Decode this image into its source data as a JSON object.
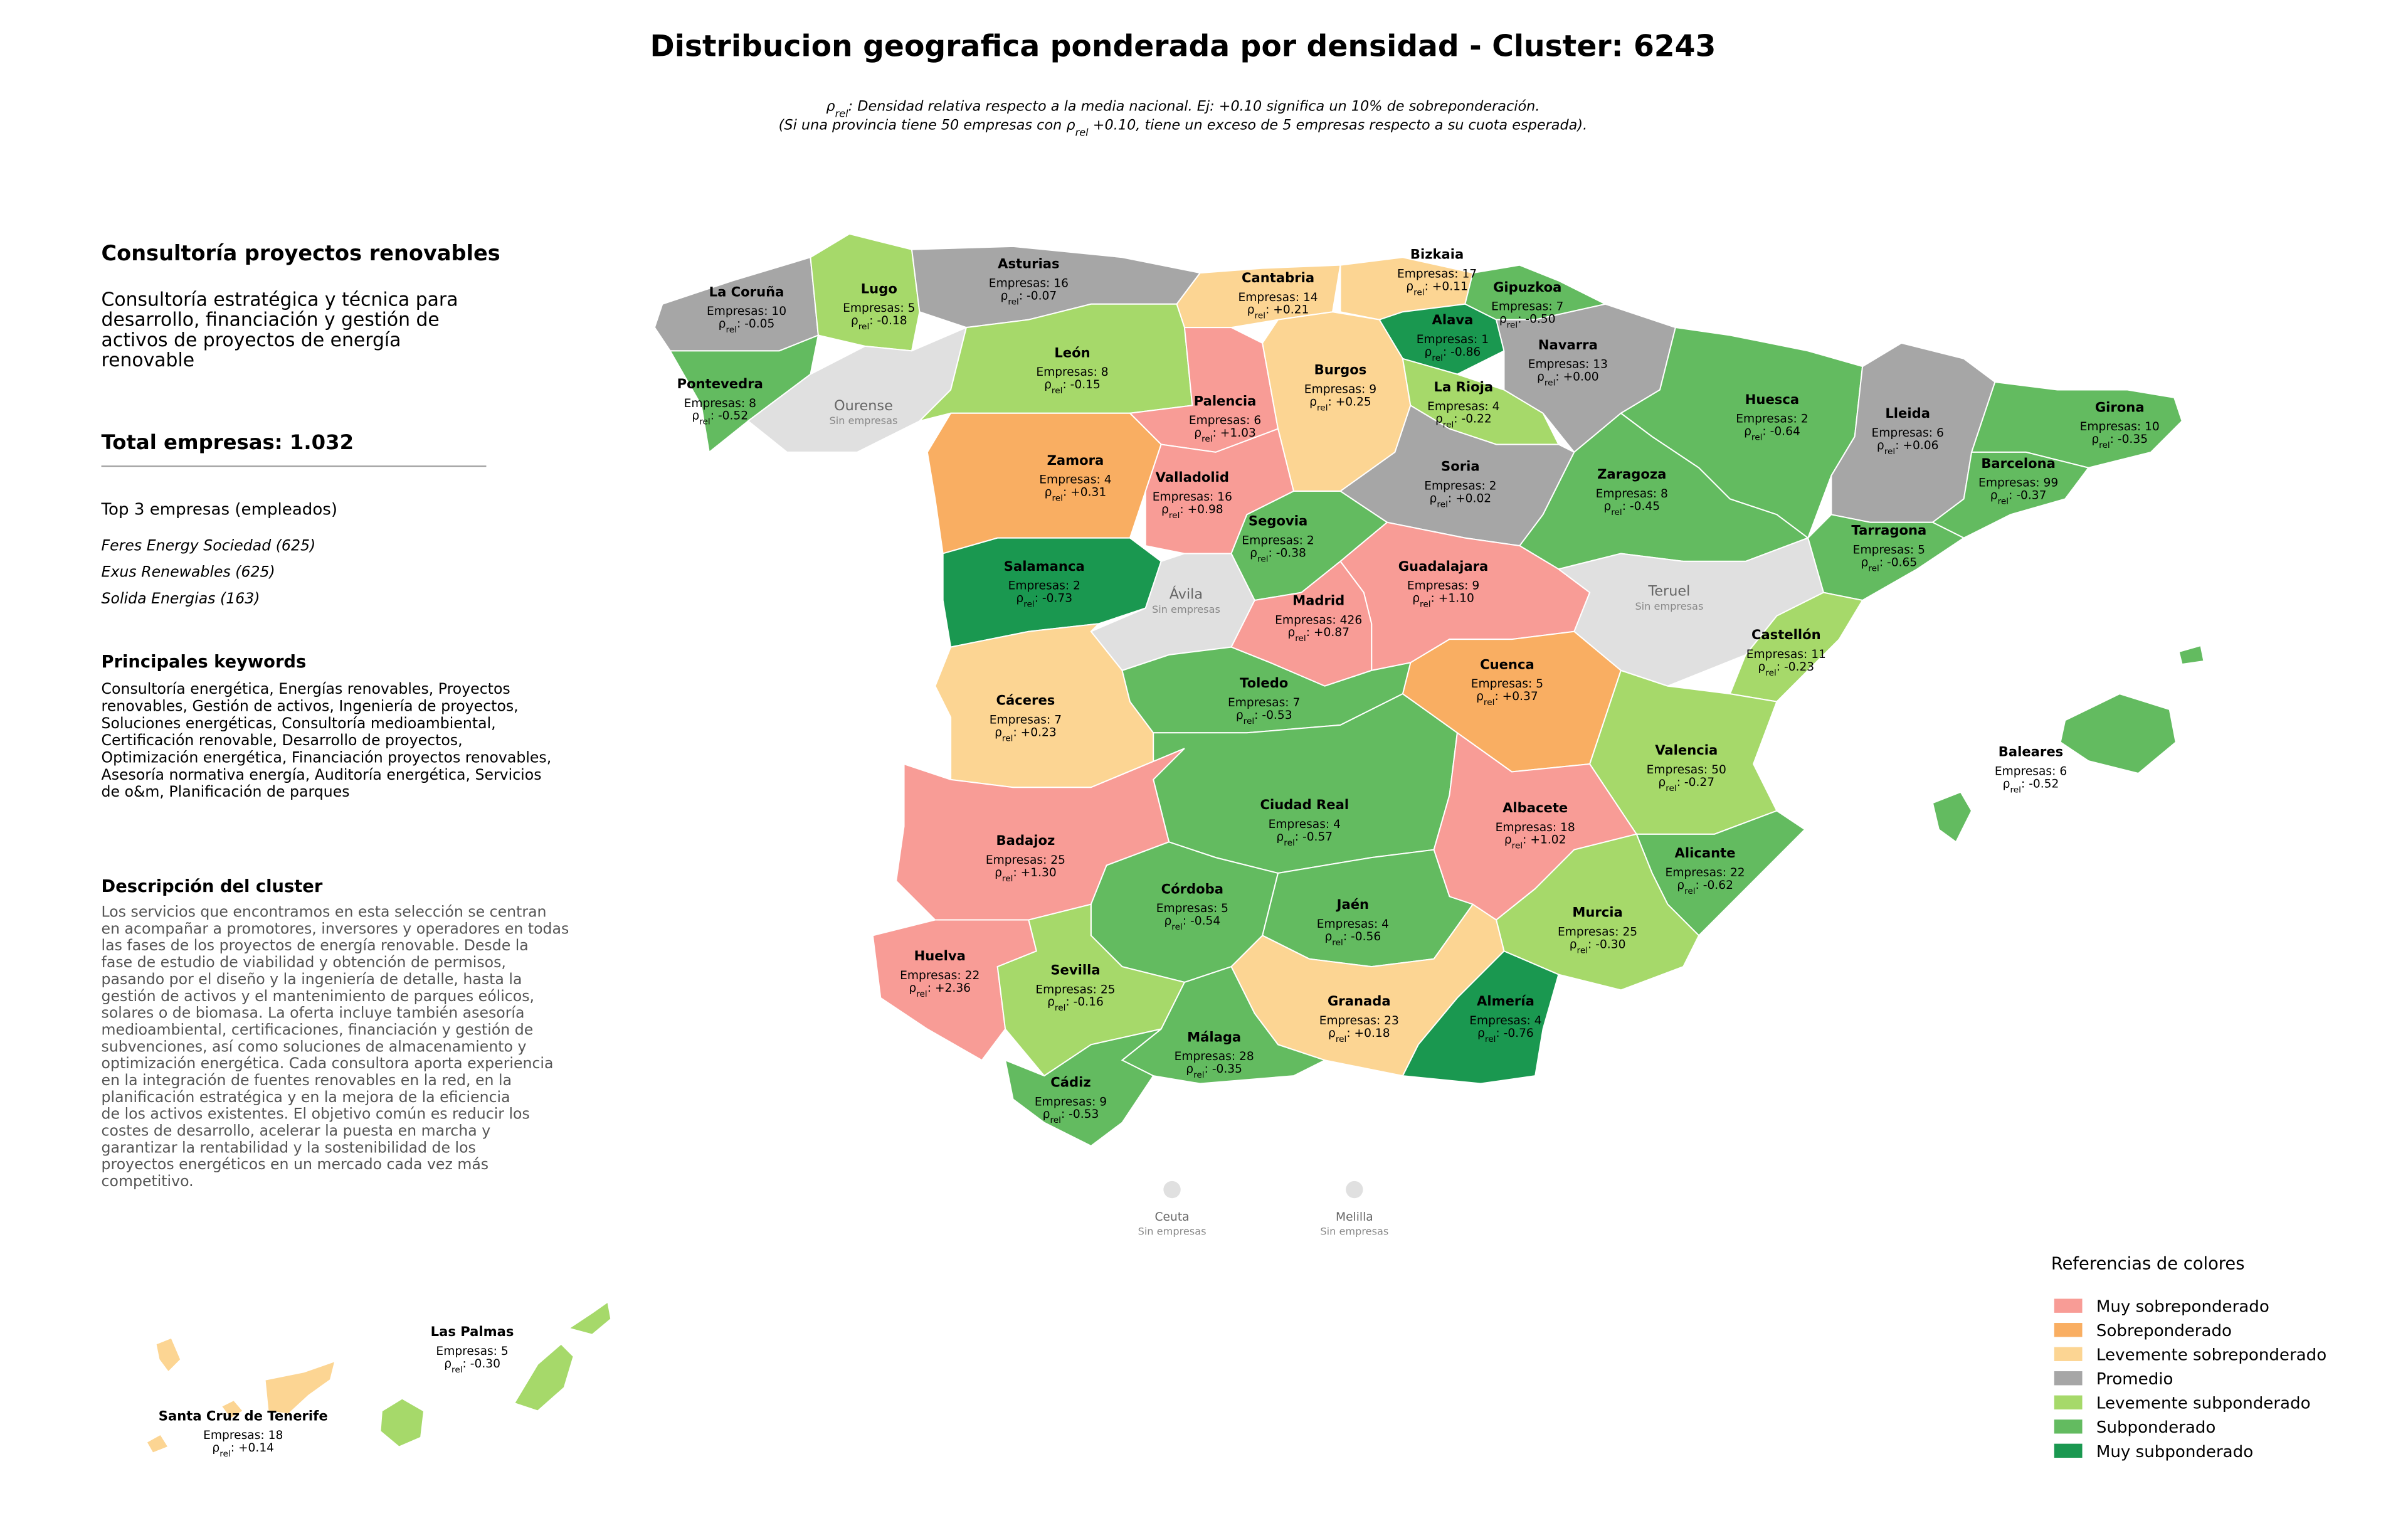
{
  "header": {
    "title": "Distribucion geografica ponderada por densidad - Cluster: 6243",
    "notes": [
      [
        {
          "text": "ρ"
        },
        {
          "sub": "rel"
        },
        {
          "text": ": Densidad relativa respecto a la media nacional. Ej: +0.10 significa un 10% de sobreponderación."
        }
      ],
      [
        {
          "text": "(Si una provincia tiene 50 empresas con ρ"
        },
        {
          "sub": "rel"
        },
        {
          "text": " +0.10, tiene un exceso de 5 empresas respecto a su cuota esperada)."
        }
      ]
    ]
  },
  "panel": {
    "cluster_name": "Consultoría proyectos renovables",
    "cluster_summary": [
      "Consultoría estratégica y técnica para",
      "desarrollo, financiación y gestión de",
      "activos de proyectos de energía",
      "renovable"
    ],
    "total": "Total empresas: 1.032",
    "top_title": "Top 3 empresas (empleados)",
    "top_companies": [
      "Feres Energy Sociedad (625)",
      "Exus Renewables (625)",
      "Solida Energias (163)"
    ],
    "keywords_title": "Principales keywords",
    "keywords": [
      "Consultoría energética, Energías renovables, Proyectos",
      "renovables, Gestión de activos, Ingeniería de proyectos,",
      "Soluciones energéticas, Consultoría medioambiental,",
      "Certificación renovable, Desarrollo de proyectos,",
      "Optimización energética, Financiación proyectos renovables,",
      "Asesoría normativa energía, Auditoría energética, Servicios",
      "de o&m, Planificación de parques"
    ],
    "description_title": "Descripción del cluster",
    "description": [
      "Los servicios que encontramos en esta selección se centran",
      "en acompañar a promotores, inversores y operadores en todas",
      "las fases de los proyectos de energía renovable. Desde la",
      "fase de estudio de viabilidad y obtención de permisos,",
      "pasando por el diseño y la ingeniería de detalle, hasta la",
      "gestión de activos y el mantenimiento de parques eólicos,",
      "solares o de biomasa. La oferta incluye también asesoría",
      "medioambiental, certificaciones, financiación y gestión de",
      "subvenciones, así como soluciones de almacenamiento y",
      "optimización energética. Cada consultora aporta experiencia",
      "en la integración de fuentes renovables en la red, en la",
      "planificación estratégica y en la mejora de la eficiencia",
      "de los activos existentes. El objetivo común es reducir los",
      "costes de desarrollo, acelerar la puesta en marcha y",
      "garantizar la rentabilidad y la sostenibilidad de los",
      "proyectos energéticos en un mercado cada vez más",
      "competitivo."
    ]
  },
  "map": {
    "companies_label": "Empresas: ",
    "rho_symbol": "ρ",
    "rho_sub": "rel",
    "rho_sep": ": ",
    "no_companies_label": "Sin empresas",
    "no_data_color": "#e0e0e0",
    "provinces": [
      {
        "name": "La Coruña",
        "companies": 10,
        "rho": "-0.05",
        "level": 3
      },
      {
        "name": "Lugo",
        "companies": 5,
        "rho": "-0.18",
        "level": 4
      },
      {
        "name": "Asturias",
        "companies": 16,
        "rho": "-0.07",
        "level": 3
      },
      {
        "name": "Cantabria",
        "companies": 14,
        "rho": "+0.21",
        "level": 2
      },
      {
        "name": "Bizkaia",
        "companies": 17,
        "rho": "+0.11",
        "level": 2
      },
      {
        "name": "Gipuzkoa",
        "companies": 7,
        "rho": "-0.50",
        "level": 5
      },
      {
        "name": "Alava",
        "companies": 1,
        "rho": "-0.86",
        "level": 6
      },
      {
        "name": "Navarra",
        "companies": 13,
        "rho": "+0.00",
        "level": 3
      },
      {
        "name": "Pontevedra",
        "companies": 8,
        "rho": "-0.52",
        "level": 5
      },
      {
        "name": "Ourense",
        "level": null
      },
      {
        "name": "León",
        "companies": 8,
        "rho": "-0.15",
        "level": 4
      },
      {
        "name": "Palencia",
        "companies": 6,
        "rho": "+1.03",
        "level": 0
      },
      {
        "name": "Burgos",
        "companies": 9,
        "rho": "+0.25",
        "level": 2
      },
      {
        "name": "La Rioja",
        "companies": 4,
        "rho": "-0.22",
        "level": 4
      },
      {
        "name": "Huesca",
        "companies": 2,
        "rho": "-0.64",
        "level": 5
      },
      {
        "name": "Lleida",
        "companies": 6,
        "rho": "+0.06",
        "level": 3
      },
      {
        "name": "Girona",
        "companies": 10,
        "rho": "-0.35",
        "level": 5
      },
      {
        "name": "Barcelona",
        "companies": 99,
        "rho": "-0.37",
        "level": 5
      },
      {
        "name": "Zamora",
        "companies": 4,
        "rho": "+0.31",
        "level": 1
      },
      {
        "name": "Valladolid",
        "companies": 16,
        "rho": "+0.98",
        "level": 0
      },
      {
        "name": "Soria",
        "companies": 2,
        "rho": "+0.02",
        "level": 3
      },
      {
        "name": "Zaragoza",
        "companies": 8,
        "rho": "-0.45",
        "level": 5
      },
      {
        "name": "Segovia",
        "companies": 2,
        "rho": "-0.38",
        "level": 5
      },
      {
        "name": "Tarragona",
        "companies": 5,
        "rho": "-0.65",
        "level": 5
      },
      {
        "name": "Salamanca",
        "companies": 2,
        "rho": "-0.73",
        "level": 6
      },
      {
        "name": "Ávila",
        "level": null
      },
      {
        "name": "Guadalajara",
        "companies": 9,
        "rho": "+1.10",
        "level": 0
      },
      {
        "name": "Madrid",
        "companies": 426,
        "rho": "+0.87",
        "level": 0
      },
      {
        "name": "Teruel",
        "level": null
      },
      {
        "name": "Castellón",
        "companies": 11,
        "rho": "-0.23",
        "level": 4
      },
      {
        "name": "Cuenca",
        "companies": 5,
        "rho": "+0.37",
        "level": 1
      },
      {
        "name": "Cáceres",
        "companies": 7,
        "rho": "+0.23",
        "level": 2
      },
      {
        "name": "Toledo",
        "companies": 7,
        "rho": "-0.53",
        "level": 5
      },
      {
        "name": "Valencia",
        "companies": 50,
        "rho": "-0.27",
        "level": 4
      },
      {
        "name": "Baleares",
        "companies": 6,
        "rho": "-0.52",
        "level": 5
      },
      {
        "name": "Ciudad Real",
        "companies": 4,
        "rho": "-0.57",
        "level": 5
      },
      {
        "name": "Albacete",
        "companies": 18,
        "rho": "+1.02",
        "level": 0
      },
      {
        "name": "Badajoz",
        "companies": 25,
        "rho": "+1.30",
        "level": 0
      },
      {
        "name": "Alicante",
        "companies": 22,
        "rho": "-0.62",
        "level": 5
      },
      {
        "name": "Córdoba",
        "companies": 5,
        "rho": "-0.54",
        "level": 5
      },
      {
        "name": "Jaén",
        "companies": 4,
        "rho": "-0.56",
        "level": 5
      },
      {
        "name": "Murcia",
        "companies": 25,
        "rho": "-0.30",
        "level": 4
      },
      {
        "name": "Huelva",
        "companies": 22,
        "rho": "+2.36",
        "level": 0
      },
      {
        "name": "Sevilla",
        "companies": 25,
        "rho": "-0.16",
        "level": 4
      },
      {
        "name": "Granada",
        "companies": 23,
        "rho": "+0.18",
        "level": 2
      },
      {
        "name": "Almería",
        "companies": 4,
        "rho": "-0.76",
        "level": 6
      },
      {
        "name": "Málaga",
        "companies": 28,
        "rho": "-0.35",
        "level": 5
      },
      {
        "name": "Cádiz",
        "companies": 9,
        "rho": "-0.53",
        "level": 5
      },
      {
        "name": "Las Palmas",
        "companies": 5,
        "rho": "-0.30",
        "level": 4
      },
      {
        "name": "Santa Cruz de Tenerife",
        "companies": 18,
        "rho": "+0.14",
        "level": 2
      },
      {
        "name": "Ceuta",
        "level": null
      },
      {
        "name": "Melilla",
        "level": null
      }
    ]
  },
  "legend": {
    "title": "Referencias de colores",
    "items": [
      {
        "name": "Muy sobreponderado",
        "color": "#f89c96"
      },
      {
        "name": "Sobreponderado",
        "color": "#f9ae62"
      },
      {
        "name": "Levemente sobreponderado",
        "color": "#fcd593"
      },
      {
        "name": "Promedio",
        "color": "#a6a6a6"
      },
      {
        "name": "Levemente subponderado",
        "color": "#a6d96a"
      },
      {
        "name": "Subponderado",
        "color": "#63bb60"
      },
      {
        "name": "Muy subponderado",
        "color": "#1a9850"
      }
    ]
  }
}
